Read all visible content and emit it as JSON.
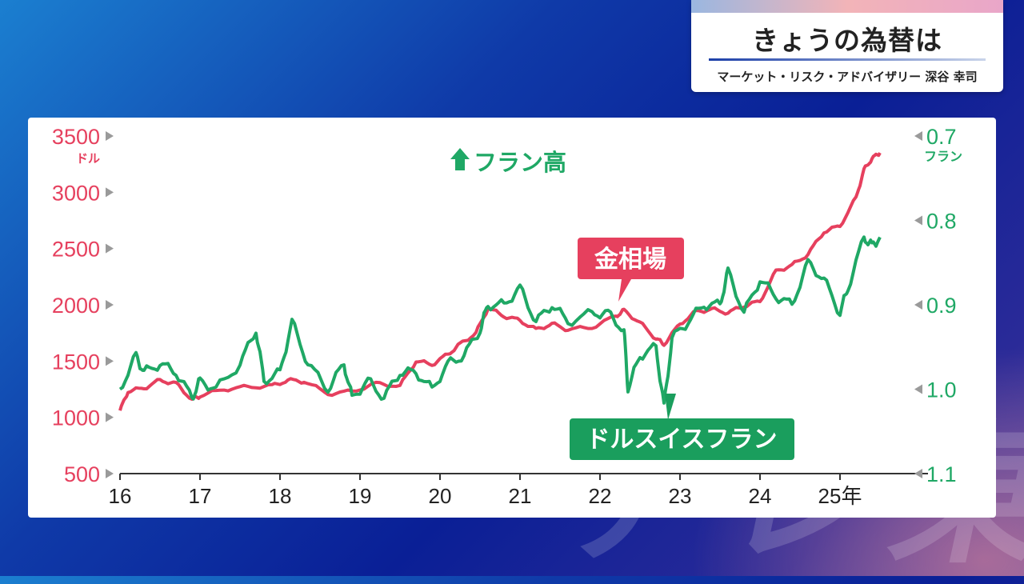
{
  "title_card": {
    "title": "きょうの為替は",
    "subtitle": "マーケット・リスク・アドバイザリー 深谷 幸司"
  },
  "background_text": "テレ東",
  "colors": {
    "gold": "#e6405e",
    "franc": "#1fa865",
    "axis": "#333333",
    "gold_label_bg": "#e6405e",
    "franc_label_bg": "#1a9e5d"
  },
  "chart_data": {
    "type": "line",
    "title": "",
    "annotation": "フラン高",
    "annotation_icon": "up-arrow-icon",
    "x_ticks": [
      "16",
      "17",
      "18",
      "19",
      "20",
      "21",
      "22",
      "23",
      "24",
      "25年"
    ],
    "xlim": [
      2016.0,
      2025.9
    ],
    "left_axis": {
      "unit": "ドル",
      "ticks": [
        "3500",
        "3000",
        "2500",
        "2000",
        "1500",
        "1000",
        "500"
      ],
      "ylim": [
        500,
        3500
      ]
    },
    "right_axis": {
      "unit": "フラン",
      "ticks": [
        "0.7",
        "0.8",
        "0.9",
        "1.0",
        "1.1"
      ],
      "ylim": [
        0.7,
        1.1
      ],
      "inverted": true
    },
    "series": [
      {
        "name": "金相場",
        "axis": "left",
        "x": [
          2016.0,
          2016.1,
          2016.3,
          2016.5,
          2016.7,
          2016.9,
          2017.0,
          2017.3,
          2017.6,
          2017.9,
          2018.1,
          2018.3,
          2018.6,
          2018.9,
          2019.2,
          2019.5,
          2019.7,
          2019.9,
          2020.1,
          2020.25,
          2020.45,
          2020.6,
          2020.8,
          2021.0,
          2021.2,
          2021.4,
          2021.6,
          2021.9,
          2022.2,
          2022.3,
          2022.5,
          2022.7,
          2022.8,
          2023.0,
          2023.2,
          2023.4,
          2023.6,
          2023.8,
          2024.0,
          2024.2,
          2024.4,
          2024.6,
          2024.8,
          2025.0,
          2025.2,
          2025.3,
          2025.4,
          2025.5
        ],
        "values": [
          1060,
          1230,
          1260,
          1330,
          1300,
          1160,
          1190,
          1250,
          1270,
          1280,
          1330,
          1320,
          1210,
          1230,
          1300,
          1280,
          1500,
          1470,
          1560,
          1650,
          1750,
          1970,
          1900,
          1860,
          1780,
          1830,
          1780,
          1800,
          1900,
          1950,
          1840,
          1700,
          1650,
          1830,
          1940,
          1960,
          1930,
          1990,
          2030,
          2300,
          2350,
          2450,
          2650,
          2700,
          2950,
          3200,
          3300,
          3350
        ]
      },
      {
        "name": "ドルスイスフラン",
        "axis": "right",
        "x": [
          2016.0,
          2016.2,
          2016.3,
          2016.5,
          2016.7,
          2016.9,
          2017.0,
          2017.2,
          2017.5,
          2017.7,
          2017.8,
          2018.0,
          2018.15,
          2018.35,
          2018.6,
          2018.8,
          2018.9,
          2019.1,
          2019.3,
          2019.5,
          2019.7,
          2019.9,
          2020.1,
          2020.3,
          2020.5,
          2020.6,
          2020.8,
          2021.0,
          2021.2,
          2021.4,
          2021.6,
          2021.9,
          2022.1,
          2022.3,
          2022.35,
          2022.5,
          2022.7,
          2022.8,
          2022.9,
          2023.1,
          2023.3,
          2023.5,
          2023.6,
          2023.8,
          2024.0,
          2024.2,
          2024.4,
          2024.6,
          2024.8,
          2025.0,
          2025.1,
          2025.3,
          2025.4,
          2025.5
        ],
        "values": [
          1.0,
          0.96,
          0.98,
          0.97,
          0.98,
          1.01,
          0.99,
          1.0,
          0.97,
          0.93,
          0.99,
          0.98,
          0.92,
          0.97,
          1.0,
          0.97,
          1.01,
          0.99,
          1.01,
          0.98,
          0.98,
          1.0,
          0.97,
          0.96,
          0.93,
          0.9,
          0.9,
          0.88,
          0.92,
          0.9,
          0.92,
          0.91,
          0.91,
          0.93,
          1.0,
          0.96,
          0.95,
          1.02,
          0.94,
          0.92,
          0.9,
          0.9,
          0.86,
          0.91,
          0.87,
          0.89,
          0.9,
          0.85,
          0.87,
          0.91,
          0.88,
          0.82,
          0.83,
          0.82
        ]
      }
    ],
    "series_labels": {
      "gold": "金相場",
      "franc": "ドルスイスフラン"
    }
  }
}
